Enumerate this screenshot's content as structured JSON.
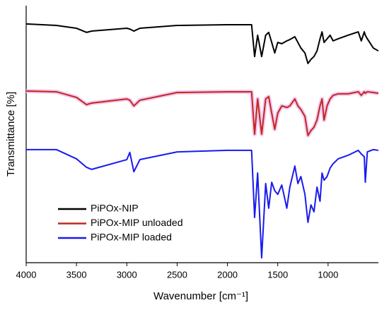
{
  "chart_data": {
    "type": "line",
    "xlabel": "Wavenumber [cm⁻¹]",
    "ylabel": "Transmittance [%]",
    "x": [
      4000,
      3700,
      3500,
      3400,
      3350,
      3000,
      2970,
      2930,
      2870,
      2500,
      2000,
      1760,
      1730,
      1700,
      1660,
      1620,
      1590,
      1560,
      1530,
      1500,
      1460,
      1410,
      1380,
      1330,
      1300,
      1270,
      1230,
      1200,
      1170,
      1140,
      1110,
      1080,
      1060,
      1040,
      1010,
      980,
      950,
      900,
      800,
      700,
      670,
      640,
      630,
      610,
      550,
      500
    ],
    "series": [
      {
        "name": "PiPOx-NIP",
        "color": "#000000",
        "values": [
          92.9,
          92.3,
          91.2,
          89.6,
          90.1,
          91.2,
          90.9,
          90.1,
          91.2,
          92.3,
          92.6,
          92.6,
          80.2,
          88.5,
          80.2,
          88.5,
          89.6,
          85.7,
          81.6,
          85.7,
          85.2,
          86.3,
          86.8,
          87.9,
          85.7,
          83.5,
          81.6,
          77.5,
          79.1,
          80.2,
          82.4,
          87.1,
          89.8,
          85.7,
          87.1,
          88.5,
          86.3,
          87.1,
          88.5,
          89.8,
          86.3,
          89.8,
          88.5,
          87.1,
          83.5,
          82.4
        ]
      },
      {
        "name": "PiPOx-MIP unloaded",
        "color": "#c0281c",
        "values": [
          66.8,
          66.5,
          64.3,
          61.5,
          62.1,
          63.7,
          63.2,
          61.0,
          63.2,
          66.2,
          66.5,
          66.5,
          50.0,
          63.7,
          50.0,
          63.7,
          64.6,
          58.2,
          51.9,
          58.2,
          61.0,
          60.4,
          61.0,
          63.7,
          61.0,
          59.6,
          56.9,
          49.5,
          51.4,
          52.7,
          55.5,
          61.0,
          63.7,
          55.5,
          61.0,
          63.7,
          65.1,
          65.7,
          65.7,
          66.5,
          65.1,
          66.5,
          65.9,
          66.5,
          66.2,
          65.9
        ]
      },
      {
        "name": "PiPOx-MIP loaded",
        "color": "#1a1aee",
        "values": [
          44.0,
          44.0,
          40.4,
          37.1,
          36.3,
          40.1,
          42.9,
          35.4,
          40.1,
          43.1,
          43.7,
          43.7,
          17.6,
          34.9,
          1.9,
          30.8,
          21.2,
          31.3,
          28.0,
          26.6,
          30.2,
          21.2,
          29.4,
          37.6,
          30.8,
          33.5,
          26.6,
          15.7,
          22.5,
          19.8,
          29.4,
          23.9,
          34.9,
          32.1,
          33.5,
          36.8,
          38.5,
          40.4,
          41.8,
          43.7,
          42.3,
          41.2,
          31.3,
          43.1,
          44.0,
          43.7
        ]
      }
    ],
    "xlim": [
      4000,
      500
    ],
    "xticks": [
      4000,
      3500,
      3000,
      2500,
      2000,
      1500,
      1000
    ],
    "ylim": [
      0,
      100
    ],
    "legend": "lower left"
  }
}
